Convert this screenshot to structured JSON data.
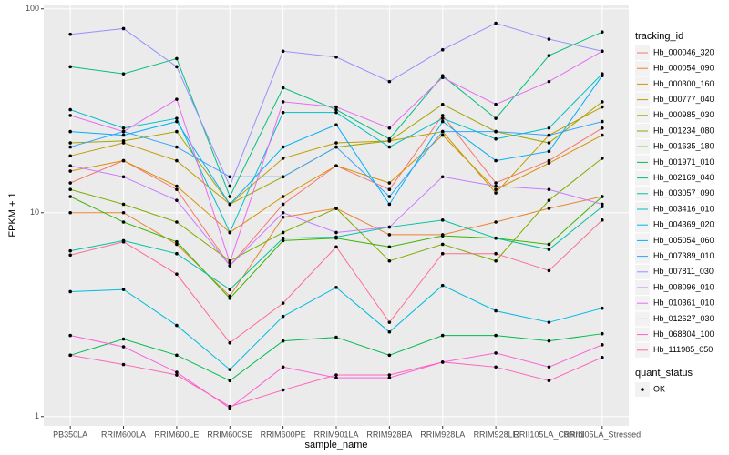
{
  "chart_data": {
    "type": "line",
    "x_label": "sample_name",
    "y_label": "FPKM + 1",
    "categories": [
      "PB350LA",
      "RRIM600LA",
      "RRIM600LE",
      "RRIM600SE",
      "RRIM600PE",
      "RRIM901LA",
      "RRIM928BA",
      "RRIM928LA",
      "RRIM928LE",
      "RRII105LA_Control",
      "RRII105LA_Stressed"
    ],
    "ylim": [
      0.9,
      105
    ],
    "yticks": [
      1,
      10,
      100
    ],
    "log_y": true,
    "grid": true,
    "point_color": "#000000",
    "legend_title": "tracking_id",
    "legend_position": "right",
    "shape_legend": {
      "title": "quant_status",
      "labels": [
        "OK"
      ]
    },
    "series": [
      {
        "name": "Hb_000046_320",
        "color": "#F8766D",
        "values": [
          14,
          18,
          13,
          5.5,
          11,
          17,
          13,
          30,
          14,
          18,
          26
        ]
      },
      {
        "name": "Hb_000054_090",
        "color": "#EA8331",
        "values": [
          10,
          10,
          7,
          3.9,
          9.5,
          10.5,
          7.8,
          7.8,
          9,
          10.5,
          12
        ]
      },
      {
        "name": "Hb_000300_160",
        "color": "#D89000",
        "values": [
          16,
          18,
          13.5,
          8,
          12,
          17,
          14,
          24,
          13,
          17.5,
          24
        ]
      },
      {
        "name": "Hb_000777_040",
        "color": "#C09B00",
        "values": [
          19,
          22,
          18,
          11,
          18.5,
          22,
          22.5,
          25,
          12.5,
          24,
          33
        ]
      },
      {
        "name": "Hb_000985_030",
        "color": "#A3A500",
        "values": [
          22,
          22.5,
          25,
          11,
          15,
          21,
          22.5,
          34,
          25,
          22,
          35
        ]
      },
      {
        "name": "Hb_001234_080",
        "color": "#7CAE00",
        "values": [
          13,
          11,
          9,
          5.8,
          8,
          10.5,
          5.8,
          7,
          5.8,
          11.5,
          18.5
        ]
      },
      {
        "name": "Hb_001635_180",
        "color": "#39B600",
        "values": [
          12,
          9,
          7.2,
          3.8,
          7.3,
          7.5,
          6.8,
          7.7,
          7.5,
          7,
          12
        ]
      },
      {
        "name": "Hb_001971_010",
        "color": "#00BB4E",
        "values": [
          2,
          2.4,
          2,
          1.5,
          2.35,
          2.45,
          2,
          2.5,
          2.5,
          2.35,
          2.55
        ]
      },
      {
        "name": "Hb_002169_040",
        "color": "#00BF7D",
        "values": [
          52,
          48,
          57,
          12,
          41,
          32,
          23,
          47,
          29,
          59,
          77
        ]
      },
      {
        "name": "Hb_003057_090",
        "color": "#00C1A3",
        "values": [
          6.5,
          7.3,
          6.3,
          4.2,
          7.5,
          7.6,
          8.5,
          9.2,
          7.5,
          6.6,
          10.7
        ]
      },
      {
        "name": "Hb_003416_010",
        "color": "#00BFC4",
        "values": [
          32,
          26,
          29,
          8,
          31,
          31,
          21,
          29,
          23,
          26,
          48
        ]
      },
      {
        "name": "Hb_004369_020",
        "color": "#00BAE0",
        "values": [
          4.1,
          4.2,
          2.8,
          1.7,
          3.1,
          4.3,
          2.6,
          4.4,
          3.3,
          2.9,
          3.4
        ]
      },
      {
        "name": "Hb_005054_060",
        "color": "#00B0F6",
        "values": [
          25,
          24,
          28,
          11,
          21,
          27,
          11,
          28,
          18,
          20,
          47
        ]
      },
      {
        "name": "Hb_007389_010",
        "color": "#35A2FF",
        "values": [
          21,
          25,
          21,
          15,
          15,
          21,
          12,
          25,
          25,
          24,
          28
        ]
      },
      {
        "name": "Hb_007811_030",
        "color": "#9590FF",
        "values": [
          75,
          80,
          52,
          13.5,
          62,
          58,
          44,
          63,
          85,
          71,
          62
        ]
      },
      {
        "name": "Hb_008096_010",
        "color": "#C77CFF",
        "values": [
          17,
          15,
          11.5,
          5.5,
          10,
          8,
          8.5,
          15,
          13.5,
          13,
          11
        ]
      },
      {
        "name": "Hb_010361_010",
        "color": "#E76BF3",
        "values": [
          30,
          25,
          36,
          5.7,
          35,
          33,
          26,
          46,
          34,
          44,
          62
        ]
      },
      {
        "name": "Hb_012627_030",
        "color": "#FA62DB",
        "values": [
          2.5,
          2.2,
          1.65,
          1.1,
          1.75,
          1.55,
          1.55,
          1.85,
          2.05,
          1.75,
          2.25
        ]
      },
      {
        "name": "Hb_068804_100",
        "color": "#FF62BC",
        "values": [
          2,
          1.8,
          1.6,
          1.12,
          1.35,
          1.6,
          1.6,
          1.85,
          1.75,
          1.5,
          1.95
        ]
      },
      {
        "name": "Hb_111985_050",
        "color": "#FF6C91",
        "values": [
          6.2,
          7.2,
          5,
          2.3,
          3.6,
          6.8,
          2.9,
          6.3,
          6.3,
          5.2,
          9.2
        ]
      }
    ]
  }
}
